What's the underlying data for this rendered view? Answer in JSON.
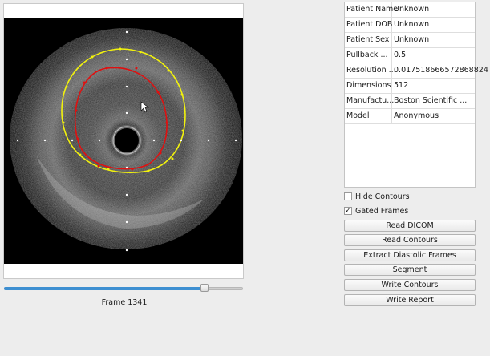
{
  "patient_info": [
    {
      "key": "Patient Name",
      "value": "Unknown"
    },
    {
      "key": "Patient DOB",
      "value": "Unknown"
    },
    {
      "key": "Patient Sex",
      "value": "Unknown"
    },
    {
      "key": "Pullback ...",
      "value": "0.5"
    },
    {
      "key": "Resolution ...",
      "value": "0.017518666572868824"
    },
    {
      "key": "Dimensions",
      "value": "512"
    },
    {
      "key": "Manufactu...",
      "value": "Boston Scientific ..."
    },
    {
      "key": "Model",
      "value": "Anonymous"
    }
  ],
  "options": {
    "hide_contours": {
      "label": "Hide Contours",
      "checked": false,
      "mark": ""
    },
    "gated_frames": {
      "label": "Gated Frames",
      "checked": true,
      "mark": "✓"
    }
  },
  "buttons": {
    "read_dicom": "Read DICOM",
    "read_contours": "Read Contours",
    "extract_diastolic": "Extract Diastolic Frames",
    "segment": "Segment",
    "write_contours": "Write Contours",
    "write_report": "Write Report"
  },
  "viewer": {
    "frame_label": "Frame 1341",
    "slider_value_fraction": 0.84,
    "colors": {
      "outer_contour": "#f2f20d",
      "inner_contour": "#e01010",
      "markers": "#ffffff"
    }
  }
}
